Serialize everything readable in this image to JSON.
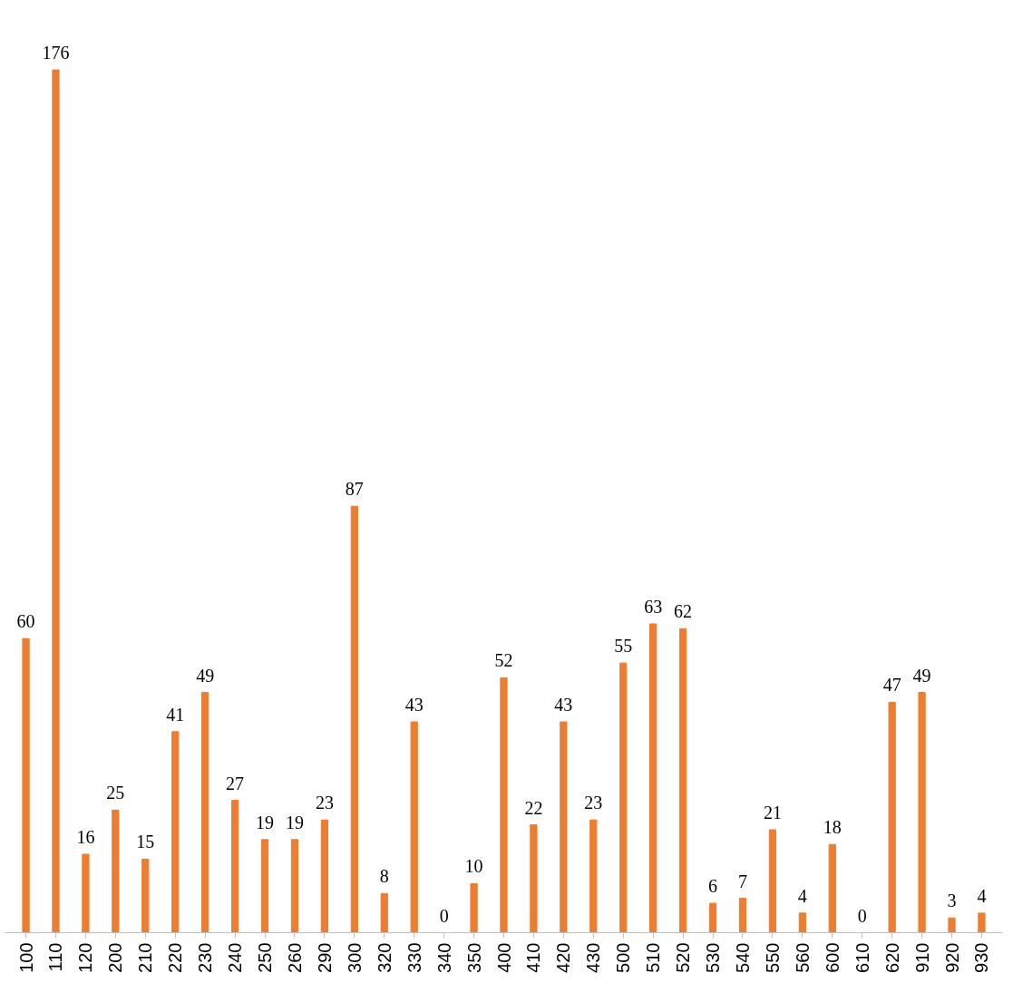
{
  "chart_data": {
    "type": "bar",
    "categories": [
      "100",
      "110",
      "120",
      "200",
      "210",
      "220",
      "230",
      "240",
      "250",
      "260",
      "290",
      "300",
      "320",
      "330",
      "340",
      "350",
      "400",
      "410",
      "420",
      "430",
      "500",
      "510",
      "520",
      "530",
      "540",
      "550",
      "560",
      "600",
      "610",
      "620",
      "910",
      "920",
      "930"
    ],
    "values": [
      60,
      176,
      16,
      25,
      15,
      41,
      49,
      27,
      19,
      19,
      23,
      87,
      8,
      43,
      0,
      10,
      52,
      22,
      43,
      23,
      55,
      63,
      62,
      6,
      7,
      21,
      4,
      18,
      0,
      47,
      49,
      3,
      4
    ],
    "color": "#ed7d31",
    "data_labels": true
  }
}
